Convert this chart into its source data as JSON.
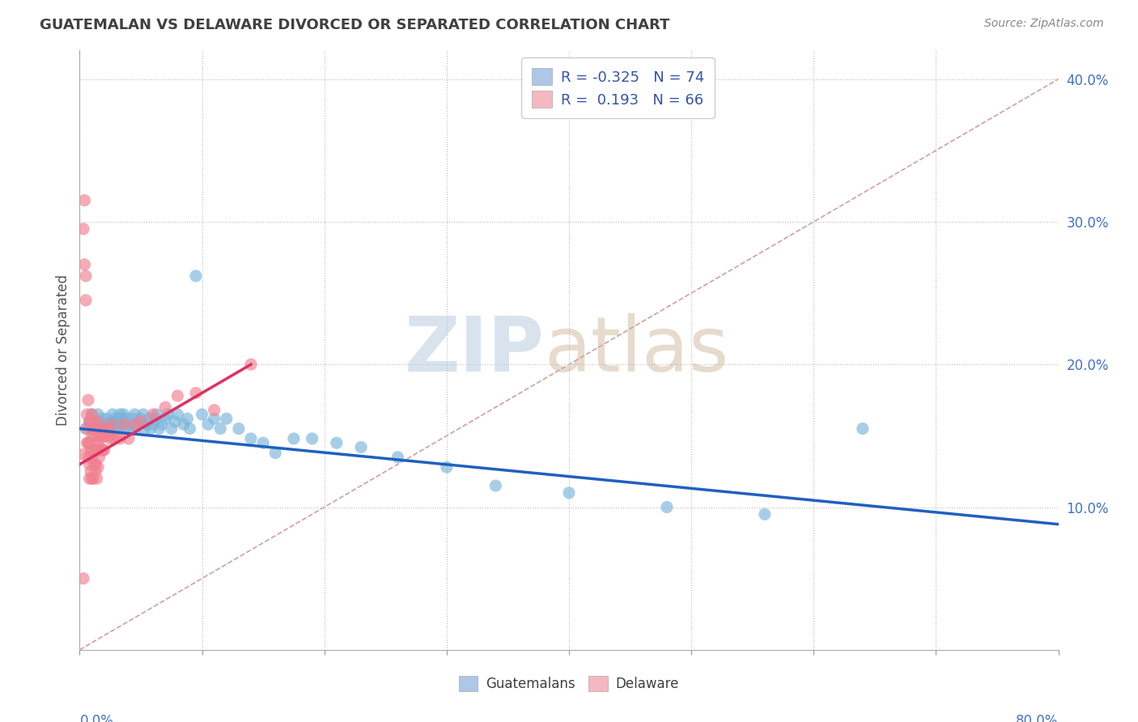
{
  "title": "GUATEMALAN VS DELAWARE DIVORCED OR SEPARATED CORRELATION CHART",
  "source": "Source: ZipAtlas.com",
  "ylabel": "Divorced or Separated",
  "xmin": 0.0,
  "xmax": 0.8,
  "ymin": 0.0,
  "ymax": 0.42,
  "yticks": [
    0.1,
    0.2,
    0.3,
    0.4
  ],
  "ytick_labels": [
    "10.0%",
    "20.0%",
    "30.0%",
    "40.0%"
  ],
  "blue_scatter_x": [
    0.005,
    0.008,
    0.01,
    0.012,
    0.013,
    0.015,
    0.015,
    0.017,
    0.018,
    0.02,
    0.021,
    0.022,
    0.023,
    0.024,
    0.025,
    0.026,
    0.027,
    0.028,
    0.029,
    0.03,
    0.031,
    0.032,
    0.033,
    0.034,
    0.035,
    0.036,
    0.037,
    0.038,
    0.04,
    0.042,
    0.044,
    0.045,
    0.046,
    0.048,
    0.05,
    0.052,
    0.053,
    0.055,
    0.057,
    0.058,
    0.06,
    0.062,
    0.063,
    0.065,
    0.067,
    0.07,
    0.072,
    0.075,
    0.078,
    0.08,
    0.085,
    0.088,
    0.09,
    0.095,
    0.1,
    0.105,
    0.11,
    0.115,
    0.12,
    0.13,
    0.14,
    0.15,
    0.16,
    0.175,
    0.19,
    0.21,
    0.23,
    0.26,
    0.3,
    0.34,
    0.4,
    0.48,
    0.56,
    0.64
  ],
  "blue_scatter_y": [
    0.155,
    0.16,
    0.165,
    0.155,
    0.16,
    0.165,
    0.155,
    0.158,
    0.162,
    0.155,
    0.158,
    0.162,
    0.155,
    0.158,
    0.155,
    0.16,
    0.165,
    0.158,
    0.162,
    0.155,
    0.158,
    0.162,
    0.165,
    0.158,
    0.162,
    0.165,
    0.155,
    0.162,
    0.155,
    0.158,
    0.162,
    0.165,
    0.155,
    0.158,
    0.162,
    0.165,
    0.155,
    0.158,
    0.162,
    0.155,
    0.158,
    0.162,
    0.165,
    0.155,
    0.158,
    0.162,
    0.165,
    0.155,
    0.16,
    0.165,
    0.158,
    0.162,
    0.155,
    0.262,
    0.165,
    0.158,
    0.162,
    0.155,
    0.162,
    0.155,
    0.148,
    0.145,
    0.138,
    0.148,
    0.148,
    0.145,
    0.142,
    0.135,
    0.128,
    0.115,
    0.11,
    0.1,
    0.095,
    0.155
  ],
  "pink_scatter_x": [
    0.003,
    0.003,
    0.004,
    0.004,
    0.005,
    0.005,
    0.006,
    0.006,
    0.006,
    0.007,
    0.007,
    0.007,
    0.008,
    0.008,
    0.008,
    0.008,
    0.009,
    0.009,
    0.009,
    0.01,
    0.01,
    0.01,
    0.01,
    0.011,
    0.011,
    0.011,
    0.012,
    0.012,
    0.013,
    0.013,
    0.013,
    0.014,
    0.014,
    0.014,
    0.015,
    0.015,
    0.015,
    0.016,
    0.016,
    0.016,
    0.017,
    0.017,
    0.018,
    0.018,
    0.019,
    0.02,
    0.021,
    0.022,
    0.023,
    0.024,
    0.025,
    0.026,
    0.028,
    0.03,
    0.033,
    0.036,
    0.04,
    0.045,
    0.05,
    0.06,
    0.07,
    0.08,
    0.095,
    0.11,
    0.14,
    0.003
  ],
  "pink_scatter_y": [
    0.137,
    0.295,
    0.27,
    0.315,
    0.262,
    0.245,
    0.145,
    0.155,
    0.165,
    0.175,
    0.135,
    0.145,
    0.12,
    0.13,
    0.145,
    0.16,
    0.125,
    0.14,
    0.16,
    0.12,
    0.135,
    0.15,
    0.165,
    0.12,
    0.14,
    0.155,
    0.13,
    0.15,
    0.125,
    0.14,
    0.13,
    0.14,
    0.155,
    0.12,
    0.128,
    0.145,
    0.16,
    0.135,
    0.15,
    0.14,
    0.155,
    0.148,
    0.14,
    0.155,
    0.14,
    0.14,
    0.15,
    0.155,
    0.15,
    0.152,
    0.148,
    0.158,
    0.148,
    0.15,
    0.148,
    0.158,
    0.148,
    0.158,
    0.16,
    0.165,
    0.17,
    0.178,
    0.18,
    0.168,
    0.2,
    0.05
  ],
  "blue_line_start_x": 0.0,
  "blue_line_end_x": 0.8,
  "blue_line_start_y": 0.155,
  "blue_line_end_y": 0.088,
  "pink_line_start_x": 0.0,
  "pink_line_end_x": 0.14,
  "pink_line_start_y": 0.13,
  "pink_line_end_y": 0.2,
  "ref_line_start_x": 0.0,
  "ref_line_end_x": 0.8,
  "ref_line_start_y": 0.0,
  "ref_line_end_y": 0.4,
  "blue_color": "#7ab5db",
  "pink_color": "#f08090",
  "blue_line_color": "#2060c0",
  "pink_line_color": "#e03060",
  "ref_line_color": "#d0a0a0",
  "scatter_alpha": 0.65,
  "scatter_size": 120,
  "legend1_text1": "R = -0.325",
  "legend1_n1": "N = 74",
  "legend1_text2": "R =  0.193",
  "legend1_n2": "N = 66",
  "watermark_zip": "ZIP",
  "watermark_atlas": "atlas",
  "bottom_legend_labels": [
    "Guatemalans",
    "Delaware"
  ]
}
